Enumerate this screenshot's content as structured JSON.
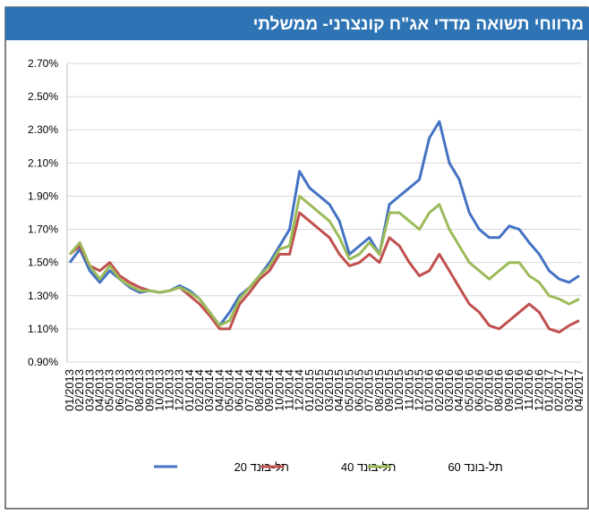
{
  "chart_data": {
    "type": "line",
    "title": "מרווחי תשואה מדדי אג\"ח קונצרני- ממשלתי",
    "categories": [
      "01/2013",
      "02/2013",
      "03/2013",
      "04/2013",
      "05/2013",
      "06/2013",
      "07/2013",
      "08/2013",
      "09/2013",
      "10/2013",
      "11/2013",
      "12/2013",
      "01/2014",
      "02/2014",
      "03/2014",
      "04/2014",
      "05/2014",
      "06/2014",
      "07/2014",
      "08/2014",
      "09/2014",
      "10/2014",
      "11/2014",
      "12/2014",
      "01/2015",
      "02/2015",
      "03/2015",
      "04/2015",
      "05/2015",
      "06/2015",
      "07/2015",
      "08/2015",
      "09/2015",
      "10/2015",
      "11/2015",
      "12/2015",
      "01/2016",
      "02/2016",
      "03/2016",
      "04/2016",
      "05/2016",
      "06/2016",
      "07/2016",
      "08/2016",
      "09/2016",
      "10/2016",
      "11/2016",
      "12/2016",
      "01/2017",
      "02/2017",
      "03/2017",
      "04/2017"
    ],
    "series": [
      {
        "name": "תל-בונד 20",
        "color": "#4472c4",
        "values": [
          1.5,
          1.58,
          1.45,
          1.38,
          1.45,
          1.4,
          1.35,
          1.32,
          1.33,
          1.32,
          1.33,
          1.36,
          1.33,
          1.28,
          1.2,
          1.12,
          1.2,
          1.3,
          1.35,
          1.42,
          1.5,
          1.6,
          1.7,
          2.05,
          1.95,
          1.9,
          1.85,
          1.75,
          1.55,
          1.6,
          1.65,
          1.55,
          1.85,
          1.9,
          1.95,
          2.0,
          2.25,
          2.35,
          2.1,
          2.0,
          1.8,
          1.7,
          1.65,
          1.65,
          1.72,
          1.7,
          1.62,
          1.55,
          1.45,
          1.4,
          1.38,
          1.42
        ]
      },
      {
        "name": "תל-בונד 40",
        "color": "#c0504d",
        "values": [
          1.55,
          1.6,
          1.48,
          1.45,
          1.5,
          1.42,
          1.38,
          1.35,
          1.33,
          1.32,
          1.33,
          1.35,
          1.3,
          1.25,
          1.18,
          1.1,
          1.1,
          1.25,
          1.32,
          1.4,
          1.45,
          1.55,
          1.55,
          1.8,
          1.75,
          1.7,
          1.65,
          1.55,
          1.48,
          1.5,
          1.55,
          1.5,
          1.65,
          1.6,
          1.5,
          1.42,
          1.45,
          1.55,
          1.45,
          1.35,
          1.25,
          1.2,
          1.12,
          1.1,
          1.15,
          1.2,
          1.25,
          1.2,
          1.1,
          1.08,
          1.12,
          1.15
        ]
      },
      {
        "name": "תל-בונד 60",
        "color": "#9bbb59",
        "values": [
          1.55,
          1.62,
          1.48,
          1.4,
          1.48,
          1.4,
          1.36,
          1.33,
          1.33,
          1.32,
          1.33,
          1.35,
          1.32,
          1.28,
          1.2,
          1.12,
          1.15,
          1.28,
          1.35,
          1.42,
          1.48,
          1.58,
          1.6,
          1.9,
          1.85,
          1.8,
          1.75,
          1.65,
          1.52,
          1.55,
          1.62,
          1.55,
          1.8,
          1.8,
          1.75,
          1.7,
          1.8,
          1.85,
          1.7,
          1.6,
          1.5,
          1.45,
          1.4,
          1.45,
          1.5,
          1.5,
          1.42,
          1.38,
          1.3,
          1.28,
          1.25,
          1.28
        ]
      }
    ],
    "ylim": [
      0.9,
      2.7
    ],
    "yticks": [
      {
        "value": 0.9,
        "label": "0.90%"
      },
      {
        "value": 1.1,
        "label": "1.10%"
      },
      {
        "value": 1.3,
        "label": "1.30%"
      },
      {
        "value": 1.5,
        "label": "1.50%"
      },
      {
        "value": 1.7,
        "label": "1.70%"
      },
      {
        "value": 1.9,
        "label": "1.90%"
      },
      {
        "value": 2.1,
        "label": "2.10%"
      },
      {
        "value": 2.3,
        "label": "2.30%"
      },
      {
        "value": 2.5,
        "label": "2.50%"
      },
      {
        "value": 2.7,
        "label": "2.70%"
      }
    ],
    "grid": true
  }
}
